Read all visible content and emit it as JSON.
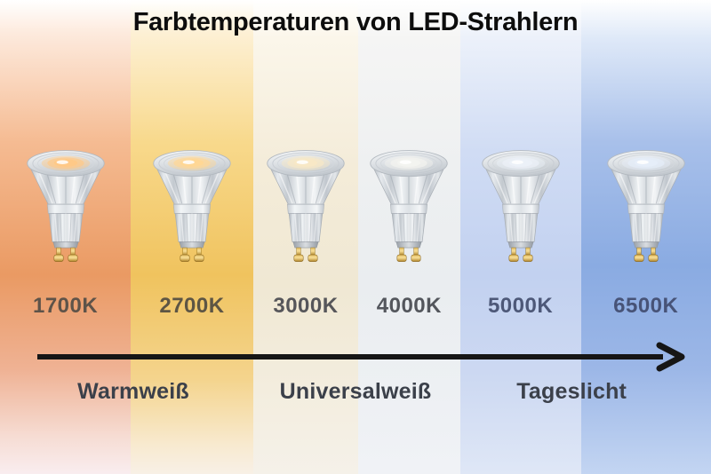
{
  "title": "Farbtemperaturen von LED-Strahlern",
  "arrow": {
    "direction": "left-to-right",
    "color": "#161616"
  },
  "columns": [
    {
      "kelvin": "1700K",
      "width_pct": 18.4,
      "label_color": "#5e5349",
      "glow": "#ffc987",
      "gradient": [
        "#ffffff 0%",
        "#fdeadd 7%",
        "#f5bb92 30%",
        "#ea9a63 58%",
        "#efb294 78%",
        "#f6dcd3 92%",
        "#f9edef 100%"
      ]
    },
    {
      "kelvin": "2700K",
      "width_pct": 17.2,
      "label_color": "#5d5544",
      "glow": "#ffd795",
      "gradient": [
        "#ffffff 0%",
        "#fdf0d4 7%",
        "#f8d98c 30%",
        "#f0c35e 58%",
        "#f4d48d 80%",
        "#f8ead0 94%",
        "#f8f0e6 100%"
      ]
    },
    {
      "kelvin": "3000K",
      "width_pct": 14.8,
      "label_color": "#56565a",
      "glow": "#f8e8c6",
      "gradient": [
        "#ffffff 0%",
        "#fbf6ea 8%",
        "#f4ecd9 35%",
        "#f0e8d3 60%",
        "#f3edde 82%",
        "#f5f1e9 100%"
      ]
    },
    {
      "kelvin": "4000K",
      "width_pct": 14.3,
      "label_color": "#53565c",
      "glow": "#f3f4f0",
      "gradient": [
        "#ffffff 0%",
        "#f5f5f4 8%",
        "#eef0f1 35%",
        "#eaedf0 60%",
        "#edf0f3 82%",
        "#f0f2f6 100%"
      ]
    },
    {
      "kelvin": "5000K",
      "width_pct": 17.0,
      "label_color": "#4d5878",
      "glow": "#ecf1f8",
      "gradient": [
        "#ffffff 0%",
        "#ecf1fa 8%",
        "#d0dcf4 32%",
        "#c2d1f0 58%",
        "#cdd9f2 80%",
        "#dfe7f6 100%"
      ]
    },
    {
      "kelvin": "6500K",
      "width_pct": 18.3,
      "label_color": "#475377",
      "glow": "#e6eef9",
      "gradient": [
        "#ffffff 0%",
        "#dfe9f8 8%",
        "#a8c0ea 30%",
        "#8aabe2 56%",
        "#9cb7e7 78%",
        "#c3d5f2 100%"
      ]
    }
  ],
  "scale_labels": [
    {
      "label": "Warmweiß",
      "x_pct": 18.75
    },
    {
      "label": "Universalweiß",
      "x_pct": 50
    },
    {
      "label": "Tageslicht",
      "x_pct": 80.4
    }
  ]
}
